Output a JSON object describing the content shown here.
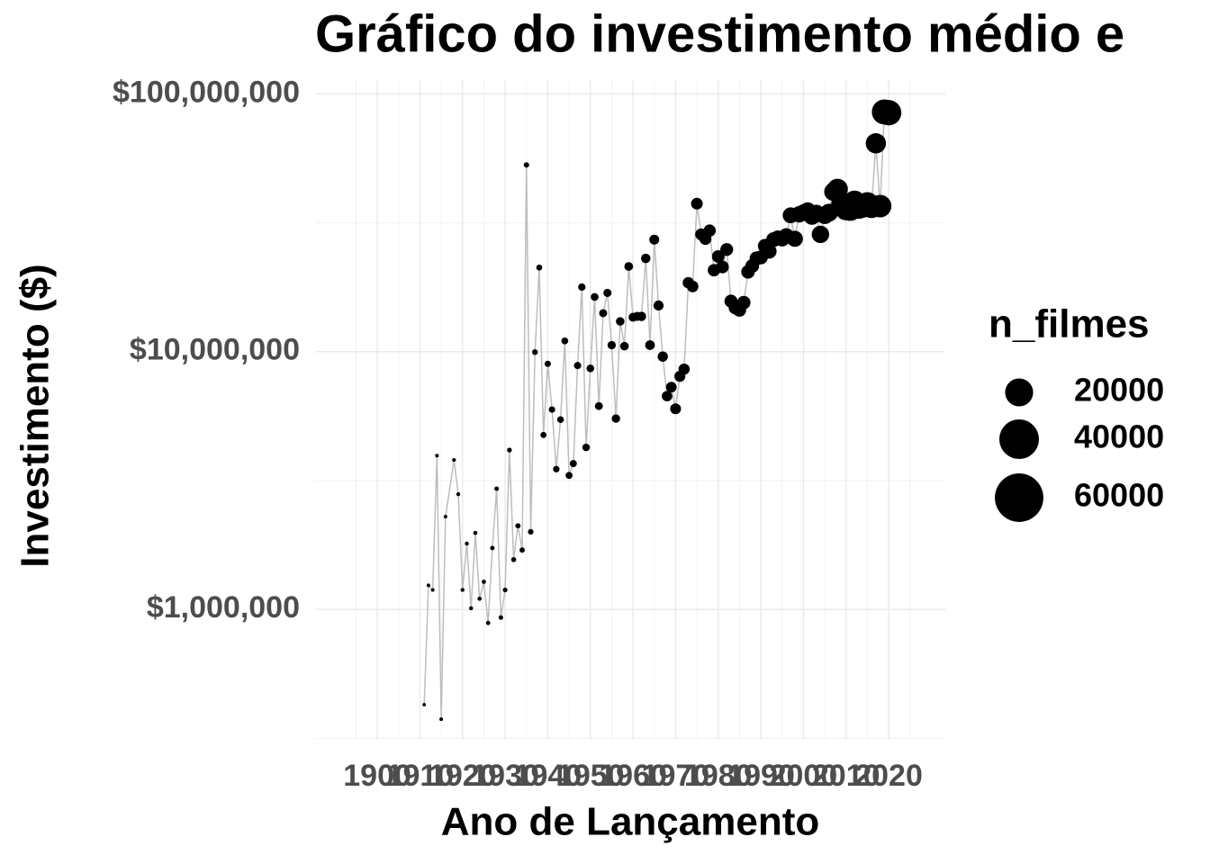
{
  "chart_data": {
    "type": "scatter",
    "title": "Gráfico do investimento médio e",
    "x_label": "Ano de Lançamento",
    "y_label": "Investimento ($)",
    "legend_title": "n_filmes",
    "size_legend": [
      20000,
      40000,
      60000
    ],
    "y_log_scale": true,
    "grid": true,
    "color": "#000000",
    "line_color": "#bdbdbd",
    "xlim": [
      1885.4,
      2033.3
    ],
    "xticks": [
      1900,
      1910,
      1920,
      1930,
      1940,
      1950,
      1960,
      1970,
      1980,
      1990,
      2000,
      2010,
      2020
    ],
    "ylim": [
      312000,
      114000000
    ],
    "yticks": [
      {
        "value": 1000000,
        "label": "$1,000,000"
      },
      {
        "value": 10000000,
        "label": "$10,000,000"
      },
      {
        "value": 100000000,
        "label": "$100,000,000"
      }
    ],
    "x": [
      1911,
      1912,
      1913,
      1914,
      1915,
      1916,
      1918,
      1919,
      1920,
      1921,
      1922,
      1923,
      1924,
      1925,
      1926,
      1927,
      1928,
      1929,
      1930,
      1931,
      1932,
      1933,
      1934,
      1935,
      1936,
      1937,
      1938,
      1939,
      1940,
      1941,
      1942,
      1943,
      1944,
      1945,
      1946,
      1947,
      1948,
      1949,
      1950,
      1951,
      1952,
      1953,
      1954,
      1955,
      1956,
      1957,
      1958,
      1959,
      1960,
      1961,
      1962,
      1963,
      1964,
      1965,
      1966,
      1967,
      1968,
      1969,
      1970,
      1971,
      1972,
      1973,
      1974,
      1975,
      1976,
      1977,
      1978,
      1979,
      1980,
      1981,
      1982,
      1983,
      1984,
      1985,
      1986,
      1987,
      1988,
      1989,
      1990,
      1991,
      1992,
      1993,
      1994,
      1995,
      1996,
      1997,
      1998,
      1999,
      2000,
      2001,
      2002,
      2003,
      2004,
      2005,
      2006,
      2007,
      2008,
      2009,
      2010,
      2011,
      2012,
      2013,
      2014,
      2015,
      2016,
      2017,
      2018,
      2019,
      2020
    ],
    "values": [
      427000,
      1240000,
      1190000,
      3950000,
      375000,
      2290000,
      3800000,
      2800000,
      1190000,
      1800000,
      1010000,
      1980000,
      1100000,
      1280000,
      886000,
      1730000,
      2940000,
      930000,
      1190000,
      4150000,
      1560000,
      2110000,
      1700000,
      53000000,
      2000000,
      9960000,
      21200000,
      4750000,
      8970000,
      5960000,
      3500000,
      5450000,
      11000000,
      3310000,
      3680000,
      8830000,
      17800000,
      4250000,
      8610000,
      16300000,
      6150000,
      14100000,
      16900000,
      10600000,
      5500000,
      13100000,
      10500000,
      21400000,
      13600000,
      13700000,
      13700000,
      23000000,
      10600000,
      27200000,
      15100000,
      9570000,
      6720000,
      7280000,
      6000000,
      8020000,
      8550000,
      18500000,
      17900000,
      37500000,
      28500000,
      27400000,
      29500000,
      20700000,
      23400000,
      21300000,
      24900000,
      15700000,
      14800000,
      14500000,
      15500000,
      20400000,
      21500000,
      23000000,
      23200000,
      25700000,
      24500000,
      27200000,
      27600000,
      27400000,
      28100000,
      33800000,
      27400000,
      34100000,
      34600000,
      35200000,
      33500000,
      34400000,
      28500000,
      33800000,
      34600000,
      41700000,
      42700000,
      37200000,
      35600000,
      35500000,
      38100000,
      36300000,
      36600000,
      37500000,
      36400000,
      64300000,
      36700000,
      85100000,
      84500000
    ],
    "sizes": [
      300,
      320,
      330,
      350,
      330,
      360,
      370,
      380,
      400,
      400,
      420,
      430,
      450,
      460,
      480,
      500,
      520,
      540,
      560,
      600,
      650,
      700,
      720,
      760,
      800,
      850,
      900,
      950,
      1000,
      1050,
      1100,
      1150,
      1200,
      1250,
      1300,
      1350,
      1400,
      1450,
      1500,
      1550,
      1600,
      1650,
      1700,
      1750,
      1800,
      1850,
      1900,
      1950,
      2000,
      2100,
      2200,
      2300,
      2400,
      2500,
      2600,
      2700,
      2800,
      2900,
      3000,
      3100,
      3200,
      3300,
      3400,
      3500,
      3600,
      3700,
      3800,
      3900,
      4000,
      4100,
      4200,
      4300,
      4400,
      4500,
      4600,
      4700,
      4800,
      4900,
      5000,
      5200,
      5400,
      5600,
      5800,
      6000,
      6200,
      6400,
      6600,
      6800,
      7000,
      7200,
      7400,
      7600,
      7800,
      8000,
      8200,
      8400,
      11000,
      11500,
      12000,
      12500,
      13000,
      13500,
      13000,
      13500,
      12500,
      10500,
      13000,
      16000,
      16500
    ]
  }
}
